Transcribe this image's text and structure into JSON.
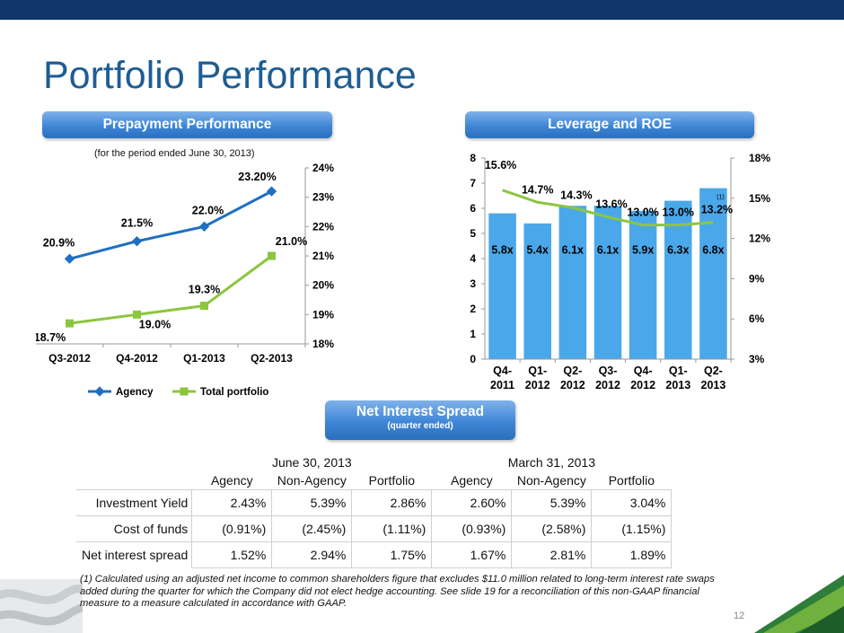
{
  "title": "Portfolio Performance",
  "prepayment": {
    "header": "Prepayment Performance",
    "note": "(for the period ended June 30, 2013)"
  },
  "leverage": {
    "header": "Leverage and ROE"
  },
  "net_spread": {
    "header": "Net Interest Spread",
    "subheader": "(quarter ended)"
  },
  "chart_data": [
    {
      "type": "line",
      "categories": [
        "Q3-2012",
        "Q4-2012",
        "Q1-2013",
        "Q2-2013"
      ],
      "series": [
        {
          "name": "Agency",
          "values": [
            20.9,
            21.5,
            22.0,
            23.2
          ],
          "labels": [
            "20.9%",
            "21.5%",
            "22.0%",
            "23.20%"
          ],
          "color": "#1f6fc2"
        },
        {
          "name": "Total portfolio",
          "values": [
            18.7,
            19.0,
            19.3,
            21.0
          ],
          "labels": [
            "18.7%",
            "19.0%",
            "19.3%",
            "21.0%"
          ],
          "color": "#8cc63f"
        }
      ],
      "ylim": [
        18,
        24
      ],
      "yticks": [
        "18%",
        "19%",
        "20%",
        "21%",
        "22%",
        "23%",
        "24%"
      ],
      "axis_side": "right",
      "legend": "bottom"
    },
    {
      "type": "bar",
      "categories": [
        "Q4-2011",
        "Q1-2012",
        "Q2-2012",
        "Q3-2012",
        "Q4-2012",
        "Q1-2013",
        "Q2-2013"
      ],
      "category_lines": [
        [
          "Q4-",
          "2011"
        ],
        [
          "Q1-",
          "2012"
        ],
        [
          "Q2-",
          "2012"
        ],
        [
          "Q3-",
          "2012"
        ],
        [
          "Q4-",
          "2012"
        ],
        [
          "Q1-",
          "2013"
        ],
        [
          "Q2-",
          "2013"
        ]
      ],
      "bars": {
        "values": [
          5.8,
          5.4,
          6.1,
          6.1,
          5.9,
          6.3,
          6.8
        ],
        "labels": [
          "5.8x",
          "5.4x",
          "6.1x",
          "6.1x",
          "5.9x",
          "6.3x",
          "6.8x"
        ],
        "color": "#4aa8ea"
      },
      "line": {
        "values": [
          15.6,
          14.7,
          14.3,
          13.6,
          13.0,
          13.0,
          13.2
        ],
        "labels": [
          "15.6%",
          "14.7%",
          "14.3%",
          "13.6%",
          "13.0%",
          "13.0%",
          "13.2%"
        ],
        "color": "#8cc63f"
      },
      "y_left": {
        "range": [
          0,
          8
        ],
        "ticks": [
          "0",
          "1",
          "2",
          "3",
          "4",
          "5",
          "6",
          "7",
          "8"
        ]
      },
      "y_right": {
        "range": [
          3,
          18
        ],
        "ticks": [
          "3%",
          "6%",
          "9%",
          "12%",
          "15%",
          "18%"
        ]
      },
      "footnote_marker": "(1)"
    }
  ],
  "table": {
    "groups": [
      "June 30, 2013",
      "March 31, 2013"
    ],
    "columns": [
      "Agency",
      "Non-Agency",
      "Portfolio",
      "Agency",
      "Non-Agency",
      "Portfolio"
    ],
    "rows": [
      {
        "label": "Investment Yield",
        "values": [
          "2.43%",
          "5.39%",
          "2.86%",
          "2.60%",
          "5.39%",
          "3.04%"
        ]
      },
      {
        "label": "Cost of funds",
        "values": [
          "(0.91%)",
          "(2.45%)",
          "(1.11%)",
          "(0.93%)",
          "(2.58%)",
          "(1.15%)"
        ]
      },
      {
        "label": "Net interest spread",
        "values": [
          "1.52%",
          "2.94%",
          "1.75%",
          "1.67%",
          "2.81%",
          "1.89%"
        ]
      }
    ]
  },
  "footnote": "(1) Calculated using an adjusted net income to common shareholders figure that excludes $11.0 million related to long-term interest rate swaps added during the quarter for which the Company did not elect hedge accounting. See slide 19 for a reconciliation of this non-GAAP financial measure to a measure calculated in accordance with GAAP.",
  "slide_number": "12"
}
